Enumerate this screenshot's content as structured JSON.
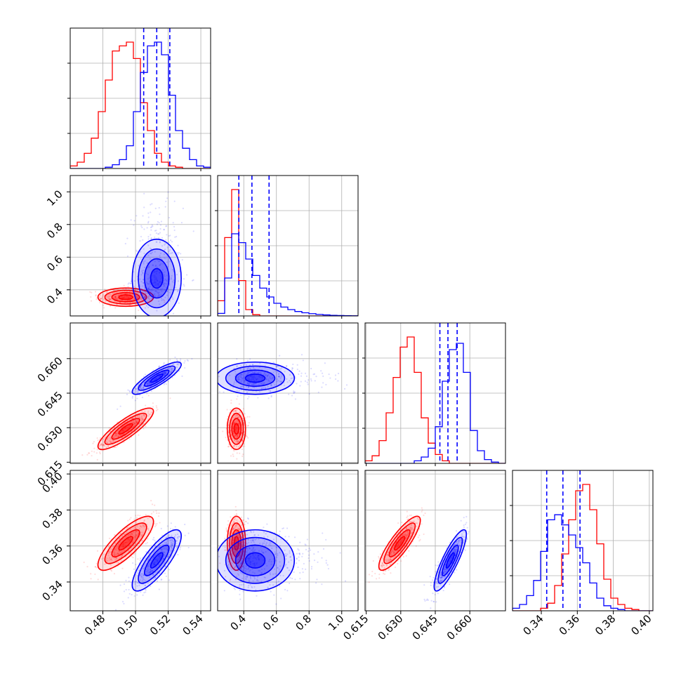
{
  "chart_data": {
    "type": "corner",
    "title": "",
    "grid": true,
    "colors": {
      "red_series": "#ff0000",
      "blue_series": "#0000ff"
    },
    "parameters": [
      {
        "index": 0,
        "range": [
          0.46,
          0.546
        ],
        "ticks": [
          0.48,
          0.5,
          0.52,
          0.54
        ],
        "tick_labels": [
          "0.48",
          "0.50",
          "0.52",
          "0.54"
        ]
      },
      {
        "index": 1,
        "range": [
          0.24,
          1.1
        ],
        "ticks": [
          0.4,
          0.6,
          0.8,
          1.0
        ],
        "tick_labels": [
          "0.4",
          "0.6",
          "0.8",
          "1.0"
        ]
      },
      {
        "index": 2,
        "range": [
          0.6145,
          0.6755
        ],
        "ticks": [
          0.615,
          0.63,
          0.645,
          0.66
        ],
        "tick_labels": [
          "0.615",
          "0.630",
          "0.645",
          "0.660"
        ]
      },
      {
        "index": 3,
        "range": [
          0.324,
          0.402
        ],
        "ticks": [
          0.34,
          0.36,
          0.38,
          0.4
        ],
        "tick_labels": [
          "0.34",
          "0.36",
          "0.38",
          "0.40"
        ]
      }
    ],
    "series": [
      {
        "color": "red",
        "means": [
          0.494,
          0.355,
          0.6295,
          0.3615
        ],
        "sds": [
          0.0085,
          0.028,
          0.0045,
          0.0075
        ],
        "correlation_param0_param2": 0.85,
        "correlation_param2_param3": 0.85,
        "correlation_param0_param3": 0.8
      },
      {
        "color": "blue",
        "means": [
          0.513,
          0.47,
          0.6515,
          0.352
        ],
        "sds": [
          0.0075,
          0.12,
          0.0035,
          0.0085
        ],
        "correlation_param0_param2": 0.85,
        "correlation_param2_param3": 0.85,
        "correlation_param0_param3": 0.8
      }
    ],
    "histograms": [
      {
        "param": 0,
        "red": [
          0.02,
          0.05,
          0.12,
          0.24,
          0.45,
          0.7,
          0.93,
          0.97,
          1.0,
          0.87,
          0.52,
          0.3,
          0.12,
          0.05,
          0.02,
          0.01,
          0,
          0,
          0,
          0
        ],
        "blue": [
          0,
          0,
          0,
          0,
          0,
          0.01,
          0.03,
          0.07,
          0.18,
          0.45,
          0.76,
          0.97,
          1.0,
          0.9,
          0.58,
          0.3,
          0.16,
          0.07,
          0.02,
          0.01
        ]
      },
      {
        "param": 1,
        "red": [
          0.12,
          0.62,
          1.0,
          0.28,
          0.05,
          0.01,
          0,
          0,
          0,
          0,
          0,
          0,
          0,
          0,
          0,
          0,
          0,
          0,
          0,
          0
        ],
        "blue": [
          0.02,
          0.3,
          0.65,
          0.58,
          0.45,
          0.32,
          0.22,
          0.15,
          0.1,
          0.07,
          0.05,
          0.035,
          0.025,
          0.018,
          0.012,
          0.008,
          0.005,
          0.003,
          0.002,
          0.001
        ]
      },
      {
        "param": 2,
        "red": [
          0.02,
          0.06,
          0.18,
          0.4,
          0.68,
          0.92,
          1.0,
          0.72,
          0.36,
          0.16,
          0.07,
          0.02,
          0,
          0,
          0,
          0,
          0,
          0,
          0,
          0
        ],
        "blue": [
          0,
          0,
          0,
          0,
          0,
          0,
          0,
          0.02,
          0.05,
          0.12,
          0.29,
          0.65,
          0.9,
          0.95,
          0.72,
          0.26,
          0.1,
          0.03,
          0.01,
          0
        ]
      },
      {
        "param": 3,
        "red": [
          0,
          0,
          0,
          0,
          0.02,
          0.06,
          0.2,
          0.45,
          0.72,
          0.95,
          1.0,
          0.8,
          0.53,
          0.25,
          0.1,
          0.05,
          0.02,
          0.01,
          0,
          0
        ],
        "blue": [
          0.02,
          0.05,
          0.12,
          0.24,
          0.47,
          0.72,
          0.76,
          0.68,
          0.6,
          0.5,
          0.38,
          0.22,
          0.1,
          0.04,
          0.02,
          0.01,
          0,
          0,
          0,
          0
        ]
      }
    ],
    "quantile_lines": {
      "color": "blue",
      "style": "dashed",
      "param0": [
        0.505,
        0.513,
        0.521
      ],
      "param1": [
        0.37,
        0.45,
        0.555
      ],
      "param2": [
        0.647,
        0.6505,
        0.6545
      ],
      "param3": [
        0.343,
        0.352,
        0.3615
      ]
    },
    "contour_levels_sigma": [
      0.5,
      1.0,
      1.5,
      2.0
    ]
  }
}
